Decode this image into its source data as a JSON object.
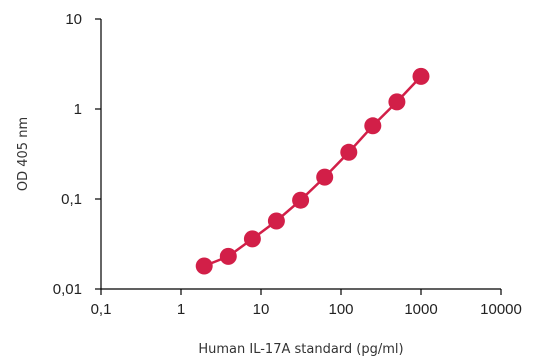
{
  "chart_data": {
    "type": "line",
    "xlabel": "Human IL-17A standard (pg/ml)",
    "ylabel": "OD 405 nm",
    "xscale": "log",
    "yscale": "log",
    "xlim": [
      0.1,
      10000
    ],
    "ylim": [
      0.01,
      10
    ],
    "xticks": [
      "0,1",
      "1",
      "10",
      "100",
      "1000",
      "10000"
    ],
    "yticks": [
      "0,01",
      "0,1",
      "1",
      "10"
    ],
    "grid": false,
    "series": [
      {
        "color": "#d21f48",
        "marker": "circle",
        "x": [
          1.95,
          3.9,
          7.8,
          15.6,
          31.25,
          62.5,
          125,
          250,
          500,
          1000
        ],
        "y": [
          0.018,
          0.023,
          0.036,
          0.057,
          0.097,
          0.175,
          0.33,
          0.65,
          1.2,
          2.3
        ]
      }
    ]
  }
}
